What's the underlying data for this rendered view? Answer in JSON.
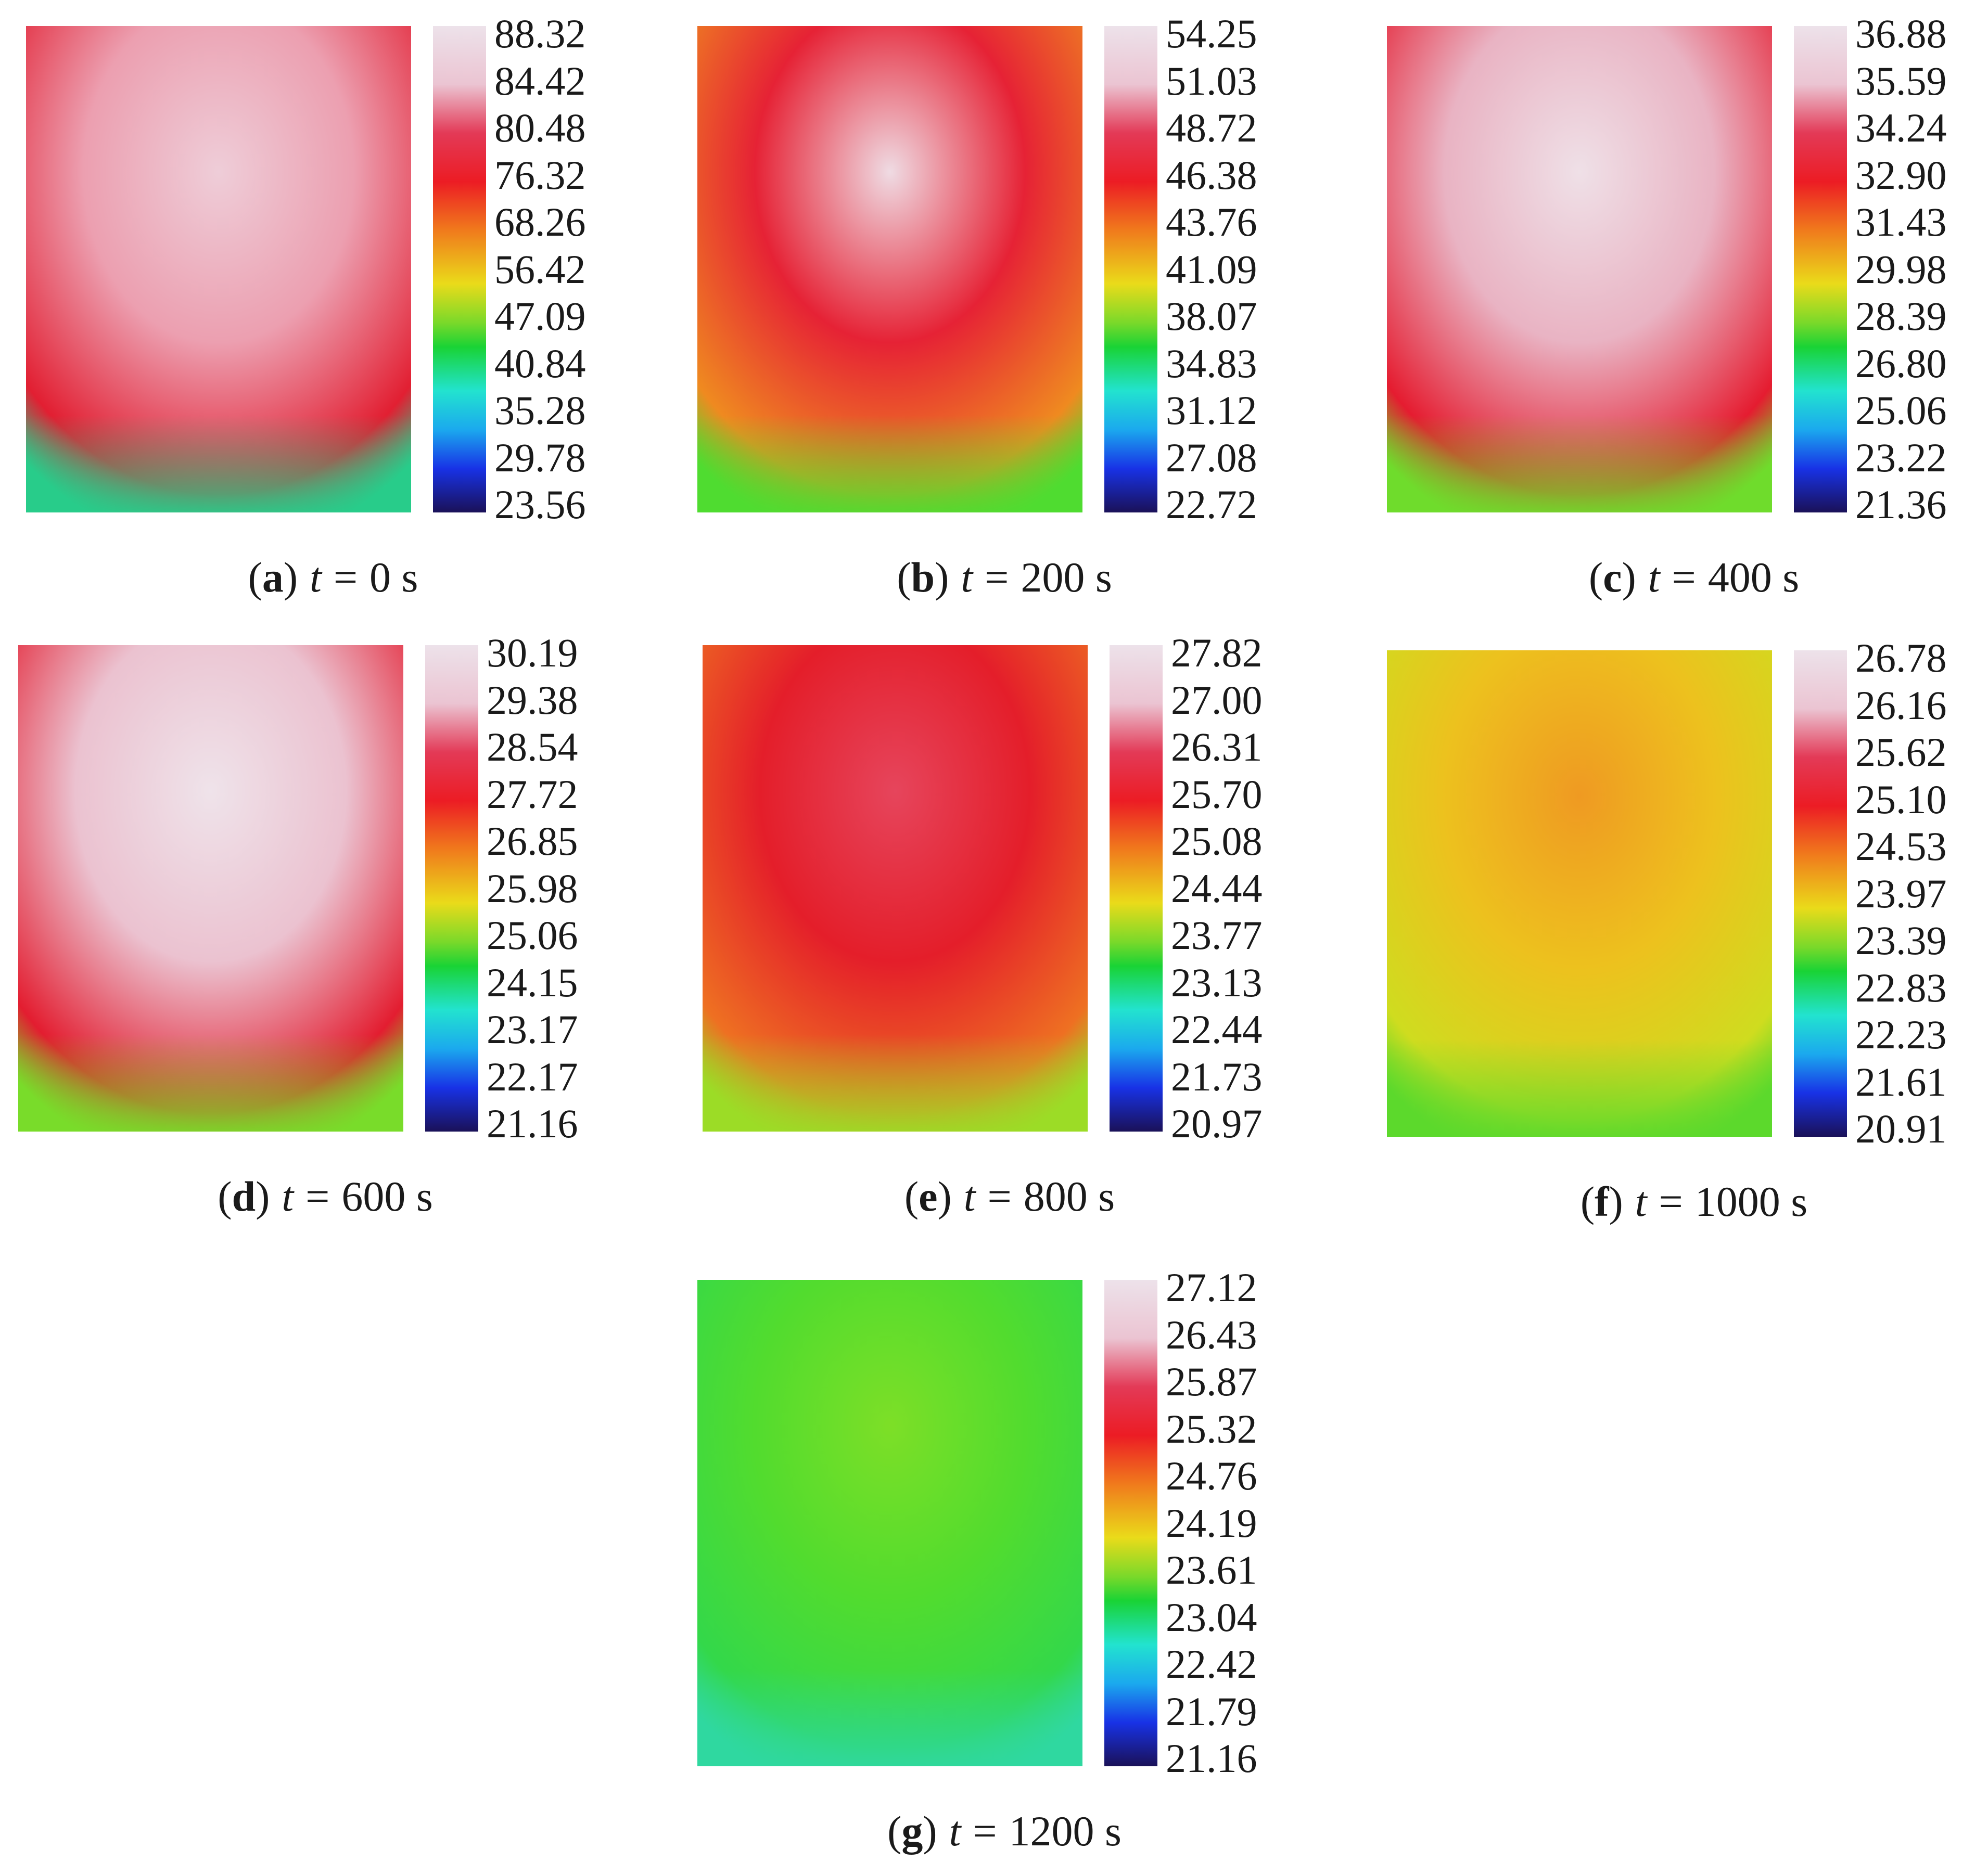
{
  "panels": [
    {
      "id": "a",
      "letter": "a",
      "var": "t",
      "equals": "=",
      "time": "0 s",
      "ticks": [
        "88.32",
        "84.42",
        "80.48",
        "76.32",
        "68.26",
        "56.42",
        "47.09",
        "40.84",
        "35.28",
        "29.78",
        "23.56"
      ],
      "colors": {
        "center": "#eecdd8",
        "mid": "#ec9fb0",
        "edge": "#e21f32",
        "bottom": "#28cc8a"
      }
    },
    {
      "id": "b",
      "letter": "b",
      "var": "t",
      "equals": "=",
      "time": "200 s",
      "ticks": [
        "54.25",
        "51.03",
        "48.72",
        "46.38",
        "43.76",
        "41.09",
        "38.07",
        "34.83",
        "31.12",
        "27.08",
        "22.72"
      ],
      "colors": {
        "center": "#efdbe3",
        "mid": "#e62235",
        "edge": "#ef8a20",
        "bottom": "#4fdc30"
      }
    },
    {
      "id": "c",
      "letter": "c",
      "var": "t",
      "equals": "=",
      "time": "400 s",
      "ticks": [
        "36.88",
        "35.59",
        "34.24",
        "32.90",
        "31.43",
        "29.98",
        "28.39",
        "26.80",
        "25.06",
        "23.22",
        "21.36"
      ],
      "colors": {
        "center": "#efe0e7",
        "mid": "#e9b3c3",
        "edge": "#e51c30",
        "bottom": "#6fdc2c"
      }
    },
    {
      "id": "d",
      "letter": "d",
      "var": "t",
      "equals": "=",
      "time": "600 s",
      "ticks": [
        "30.19",
        "29.38",
        "28.54",
        "27.72",
        "26.85",
        "25.98",
        "25.06",
        "24.15",
        "23.17",
        "22.17",
        "21.16"
      ],
      "colors": {
        "center": "#efe3ea",
        "mid": "#ebc2d0",
        "edge": "#e31d30",
        "bottom": "#79dc2a"
      }
    },
    {
      "id": "e",
      "letter": "e",
      "var": "t",
      "equals": "=",
      "time": "800 s",
      "ticks": [
        "27.82",
        "27.00",
        "26.31",
        "25.70",
        "25.08",
        "24.44",
        "23.77",
        "23.13",
        "22.44",
        "21.73",
        "20.97"
      ],
      "colors": {
        "center": "#e6455c",
        "mid": "#e41e2a",
        "edge": "#ee7022",
        "bottom": "#9cdc26"
      }
    },
    {
      "id": "f",
      "letter": "f",
      "var": "t",
      "equals": "=",
      "time": "1000 s",
      "ticks": [
        "26.78",
        "26.16",
        "25.62",
        "25.10",
        "24.53",
        "23.97",
        "23.39",
        "22.83",
        "22.23",
        "21.61",
        "20.91"
      ],
      "colors": {
        "center": "#ef9a22",
        "mid": "#edc11e",
        "edge": "#cfdc1f",
        "bottom": "#5cd92c"
      }
    },
    {
      "id": "g",
      "letter": "g",
      "var": "t",
      "equals": "=",
      "time": "1200 s",
      "ticks": [
        "27.12",
        "26.43",
        "25.87",
        "25.32",
        "24.76",
        "24.19",
        "23.61",
        "23.04",
        "22.42",
        "21.79",
        "21.16"
      ],
      "colors": {
        "center": "#7ddf27",
        "mid": "#52dc2e",
        "edge": "#33d84a",
        "bottom": "#2fd8a0"
      }
    }
  ]
}
